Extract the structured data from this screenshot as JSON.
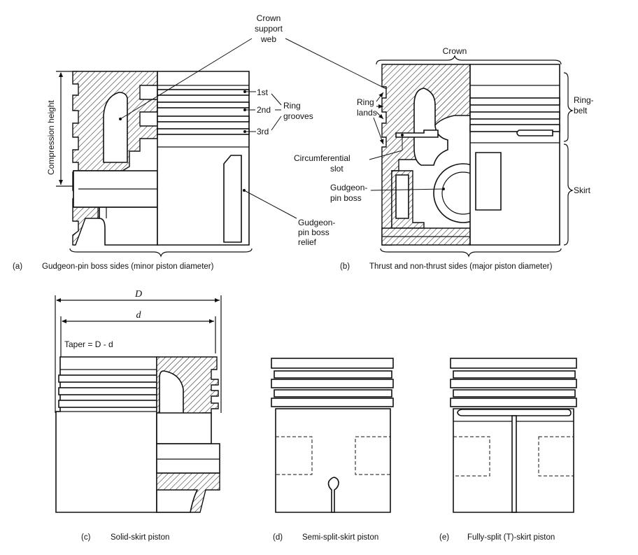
{
  "labels": {
    "crown_support_web_1": "Crown",
    "crown_support_web_2": "support",
    "crown_support_web_3": "web",
    "compression_height": "Compression height",
    "ring_1st": "1st",
    "ring_2nd": "2nd",
    "ring_3rd": "3rd",
    "ring_grooves_1": "Ring",
    "ring_grooves_2": "grooves",
    "gp_relief_1": "Gudgeon-",
    "gp_relief_2": "pin boss",
    "gp_relief_3": "relief",
    "crown": "Crown",
    "ring_lands_1": "Ring",
    "ring_lands_2": "lands",
    "ring_belt_1": "Ring-",
    "ring_belt_2": "belt",
    "circ_slot_1": "Circumferential",
    "circ_slot_2": "slot",
    "gp_boss_1": "Gudgeon-",
    "gp_boss_2": "pin boss",
    "skirt": "Skirt",
    "dim_D": "D",
    "dim_d": "d",
    "taper": "Taper = D - d"
  },
  "captions": {
    "a_letter": "(a)",
    "a_text": "Gudgeon-pin boss sides (minor piston diameter)",
    "b_letter": "(b)",
    "b_text": "Thrust and non-thrust sides (major piston diameter)",
    "c_letter": "(c)",
    "c_text": "Solid-skirt piston",
    "d_letter": "(d)",
    "d_text": "Semi-split-skirt piston",
    "e_letter": "(e)",
    "e_text": "Fully-split (T)-skirt piston"
  }
}
